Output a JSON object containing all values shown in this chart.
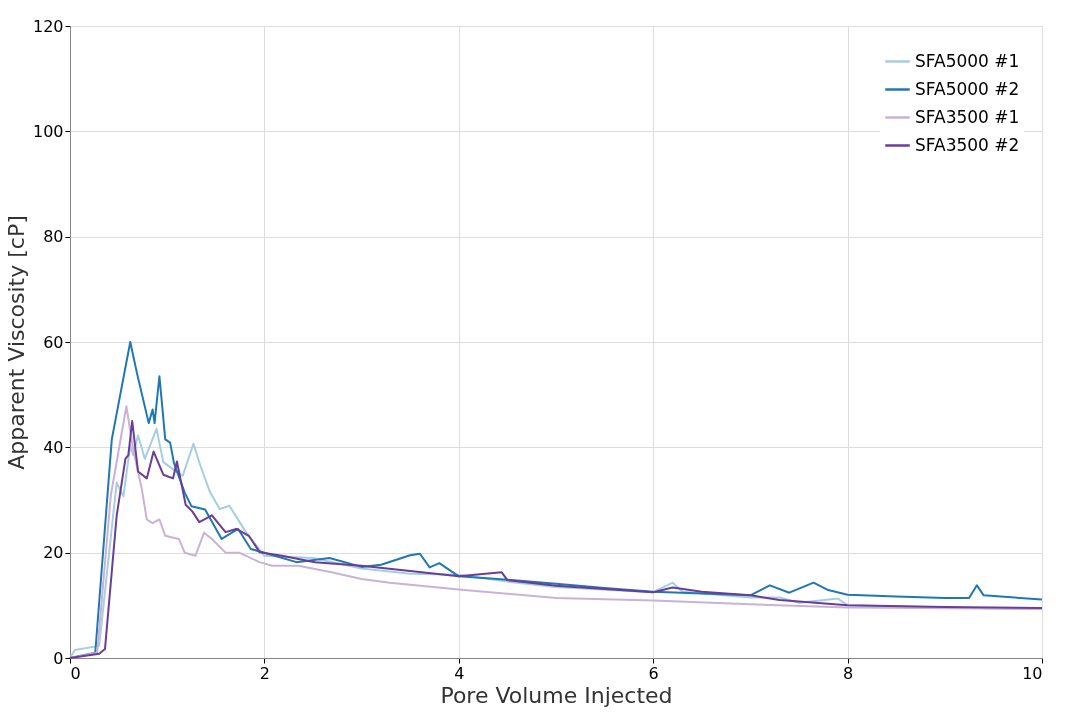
{
  "chart_data": {
    "type": "line",
    "xlabel": "Pore Volume Injected",
    "ylabel": "Apparent Viscosity [cP]",
    "xlim": [
      0,
      10
    ],
    "ylim": [
      0,
      120
    ],
    "xticks": [
      0,
      2,
      4,
      6,
      8,
      10
    ],
    "yticks": [
      0,
      20,
      40,
      60,
      80,
      100,
      120
    ],
    "grid": true,
    "legend": "top right",
    "line_style": "solid",
    "marker": "none",
    "series": [
      {
        "name": "SFA5000 #1",
        "color": "#a6cee3",
        "x": [
          0,
          0.05,
          0.3,
          0.48,
          0.55,
          0.62,
          0.65,
          0.7,
          0.77,
          0.89,
          0.96,
          1.1,
          1.16,
          1.27,
          1.34,
          1.44,
          1.54,
          1.64,
          1.81,
          2.0,
          2.5,
          3.0,
          3.5,
          4.0,
          4.5,
          5.0,
          6.0,
          6.2,
          6.3,
          7.0,
          7.3,
          7.5,
          7.9,
          8.0,
          9.0,
          10.0
        ],
        "values": [
          0,
          1.5,
          2.3,
          33.3,
          30.7,
          40.4,
          38.5,
          42.3,
          37.8,
          43.5,
          37.2,
          35.3,
          34.6,
          40.7,
          36.6,
          31.5,
          28.3,
          28.9,
          23.9,
          19.4,
          19,
          17,
          16,
          15.8,
          14.5,
          13.5,
          12.5,
          14.3,
          12.6,
          11.5,
          11.5,
          10.5,
          11.3,
          10.0,
          9.6,
          9.3
        ]
      },
      {
        "name": "SFA5000 #2",
        "color": "#1f78b4",
        "x": [
          0,
          0.26,
          0.43,
          0.52,
          0.62,
          0.69,
          0.81,
          0.85,
          0.87,
          0.92,
          0.98,
          1.03,
          1.07,
          1.18,
          1.25,
          1.39,
          1.56,
          1.73,
          1.86,
          2.0,
          2.33,
          2.67,
          3.0,
          3.2,
          3.5,
          3.6,
          3.7,
          3.8,
          4.0,
          4.4,
          5.0,
          5.5,
          6.0,
          7.0,
          7.2,
          7.4,
          7.65,
          7.8,
          8.0,
          8.5,
          9.0,
          9.25,
          9.33,
          9.4,
          10.0
        ],
        "values": [
          0,
          1,
          41.5,
          50.3,
          60,
          54,
          44.6,
          47.2,
          44.6,
          53.5,
          41.5,
          40.9,
          37,
          31.4,
          28.8,
          28.2,
          22.6,
          24.5,
          20.7,
          20,
          18.2,
          19,
          17.3,
          17.7,
          19.5,
          19.8,
          17.2,
          18,
          15.5,
          15.0,
          14.1,
          13.3,
          12.6,
          11.9,
          13.8,
          12.4,
          14.3,
          12.9,
          12.0,
          11.7,
          11.4,
          11.4,
          13.8,
          11.9,
          11.1
        ]
      },
      {
        "name": "SFA3500 #1",
        "color": "#cab2d6",
        "x": [
          0,
          0.28,
          0.42,
          0.58,
          0.65,
          0.74,
          0.79,
          0.85,
          0.92,
          0.98,
          1.12,
          1.18,
          1.29,
          1.38,
          1.46,
          1.6,
          1.74,
          1.95,
          2.08,
          2.35,
          2.69,
          3.0,
          3.29,
          4.0,
          5.0,
          6.0,
          7.0,
          8.0,
          10.0
        ],
        "values": [
          0,
          1,
          30.9,
          47.8,
          39.6,
          32,
          26.3,
          25.6,
          26.3,
          23.2,
          22.6,
          20,
          19.4,
          23.8,
          22.6,
          20,
          20,
          18.2,
          17.5,
          17.5,
          16.3,
          15.0,
          14.3,
          13.0,
          11.4,
          10.9,
          10.2,
          9.6,
          9.3
        ]
      },
      {
        "name": "SFA3500 #2",
        "color": "#6a3d9a",
        "x": [
          0,
          0.3,
          0.36,
          0.48,
          0.57,
          0.6,
          0.64,
          0.7,
          0.79,
          0.86,
          0.96,
          1.06,
          1.1,
          1.19,
          1.26,
          1.33,
          1.46,
          1.6,
          1.71,
          1.84,
          1.95,
          2.18,
          2.52,
          3.0,
          3.5,
          4.0,
          4.44,
          4.5,
          5.0,
          6.0,
          6.2,
          6.5,
          7.0,
          7.3,
          8.0,
          9.0,
          10.0
        ],
        "values": [
          0,
          0.8,
          1.7,
          27,
          37.8,
          38.5,
          45,
          35.4,
          34.1,
          39.2,
          34.8,
          34.1,
          37.3,
          29.1,
          27.8,
          25.8,
          27.1,
          23.9,
          24.5,
          23.2,
          20.1,
          19.4,
          18.2,
          17.5,
          16.5,
          15.5,
          16.3,
          14.8,
          13.7,
          12.5,
          13.4,
          12.6,
          11.9,
          11,
          10.0,
          9.7,
          9.5
        ]
      }
    ]
  }
}
